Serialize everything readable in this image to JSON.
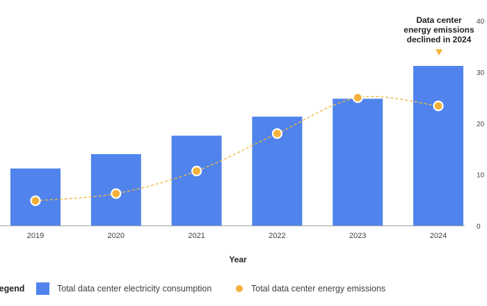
{
  "chart_data": {
    "type": "bar",
    "categories": [
      "2019",
      "2020",
      "2021",
      "2022",
      "2023",
      "2024"
    ],
    "series": [
      {
        "name": "Total data center electricity consumption",
        "type": "bar",
        "axis": "right",
        "values": [
          11.2,
          14.0,
          17.6,
          21.3,
          24.8,
          31.2
        ]
      },
      {
        "name": "Total data center energy emissions",
        "type": "line",
        "values": [
          4.9,
          6.3,
          10.7,
          18.0,
          25.0,
          23.4
        ]
      }
    ],
    "xlabel": "Year",
    "ylim": [
      0,
      40
    ],
    "yticks": [
      "0",
      "10",
      "20",
      "30",
      "40"
    ],
    "annotation": {
      "lines": [
        "Data center",
        "energy emissions",
        "declined in 2024"
      ],
      "category": "2024"
    },
    "legend": {
      "title": "Legend",
      "position": "bottom-left"
    },
    "colors": {
      "bar": "#5084ec",
      "line": "#f2b53d",
      "point_fill": "#f4b13a",
      "axis": "#9aa0a6"
    }
  }
}
